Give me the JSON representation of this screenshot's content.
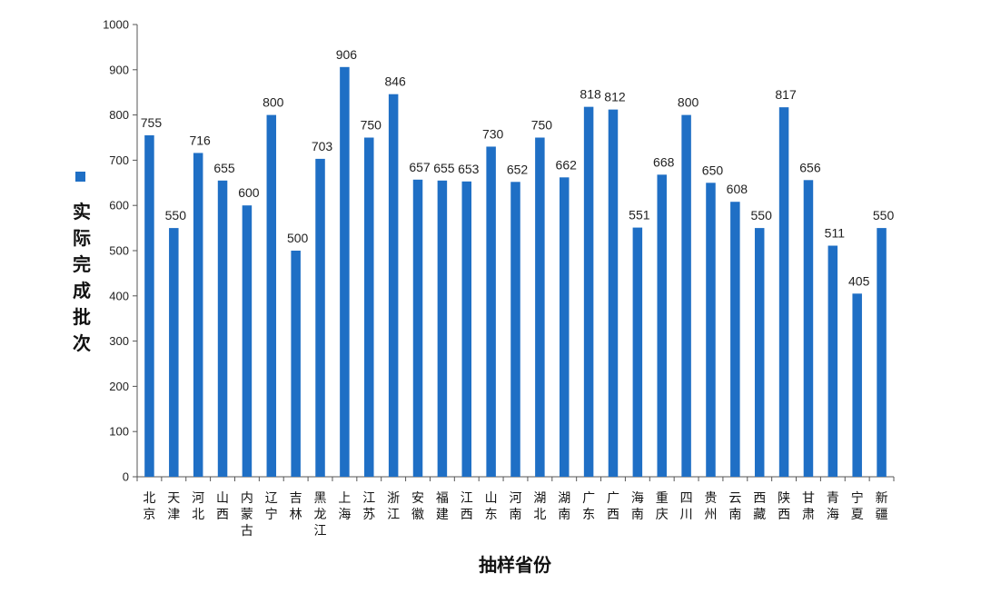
{
  "chart_data": {
    "type": "bar",
    "title": "",
    "xlabel": "抽样省份",
    "ylabel": "",
    "ylim": [
      0,
      1000
    ],
    "yticks": [
      0,
      100,
      200,
      300,
      400,
      500,
      600,
      700,
      800,
      900,
      1000
    ],
    "grid": false,
    "legend": {
      "position": "left",
      "entries": [
        "实际完成批次"
      ]
    },
    "categories": [
      "北京",
      "天津",
      "河北",
      "山西",
      "内蒙古",
      "辽宁",
      "吉林",
      "黑龙江",
      "上海",
      "江苏",
      "浙江",
      "安徽",
      "福建",
      "江西",
      "山东",
      "河南",
      "湖北",
      "湖南",
      "广东",
      "广西",
      "海南",
      "重庆",
      "四川",
      "贵州",
      "云南",
      "西藏",
      "陕西",
      "甘肃",
      "青海",
      "宁夏",
      "新疆"
    ],
    "series": [
      {
        "name": "实际完成批次",
        "color": "#1f6fc5",
        "values": [
          755,
          550,
          716,
          655,
          600,
          800,
          500,
          703,
          906,
          750,
          846,
          657,
          655,
          653,
          730,
          652,
          750,
          662,
          818,
          812,
          551,
          668,
          800,
          650,
          608,
          550,
          817,
          656,
          511,
          405,
          550
        ]
      }
    ]
  }
}
